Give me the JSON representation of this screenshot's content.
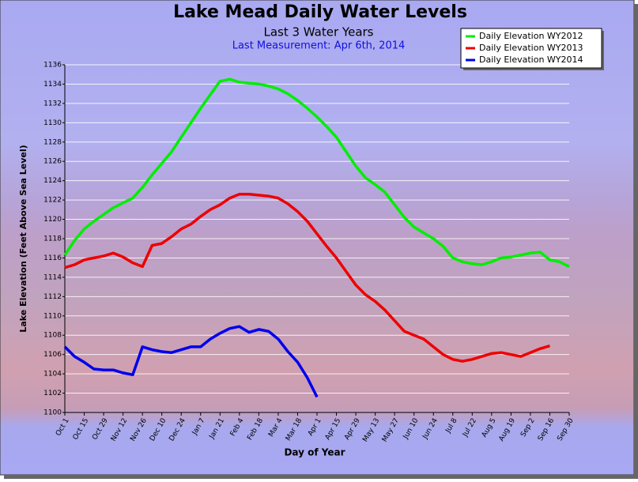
{
  "chart_data": {
    "type": "line",
    "title": "Lake Mead Daily Water Levels",
    "subtitle": "Last 3 Water Years",
    "annotation": "Last Measurement: Apr 6th, 2014",
    "x_label": "Day of Year",
    "y_label": "Lake Elevation (Feet Above Sea Level)",
    "x": [
      0,
      7,
      14,
      21,
      28,
      35,
      42,
      49,
      56,
      63,
      70,
      77,
      84,
      91,
      98,
      105,
      112,
      119,
      126,
      133,
      140,
      147,
      154,
      161,
      168,
      175,
      182,
      189,
      196,
      203,
      210,
      217,
      224,
      231,
      238,
      245,
      252,
      259,
      266,
      273,
      280,
      287,
      294,
      301,
      308,
      315,
      322,
      329,
      336,
      343,
      350,
      357,
      364
    ],
    "series": [
      {
        "name": "Daily Elevation WY2012",
        "color": "#00ee00",
        "values": [
          1116.3,
          1117.8,
          1119,
          1119.8,
          1120.5,
          1121.2,
          1121.7,
          1122.2,
          1123.3,
          1124.6,
          1125.8,
          1127,
          1128.5,
          1130,
          1131.5,
          1132.9,
          1134.3,
          1134.5,
          1134.2,
          1134.1,
          1134,
          1133.8,
          1133.5,
          1133,
          1132.3,
          1131.5,
          1130.6,
          1129.6,
          1128.5,
          1127,
          1125.5,
          1124.3,
          1123.6,
          1122.8,
          1121.5,
          1120.2,
          1119.2,
          1118.6,
          1118,
          1117.2,
          1116,
          1115.6,
          1115.4,
          1115.3,
          1115.6,
          1116,
          1116.1,
          1116.3,
          1116.5,
          1116.6,
          1115.8,
          1115.6,
          1115.1
        ]
      },
      {
        "name": "Daily Elevation WY2013",
        "color": "#ee0000",
        "values": [
          1115,
          1115.3,
          1115.8,
          1116,
          1116.2,
          1116.5,
          1116.1,
          1115.5,
          1115.1,
          1117.3,
          1117.5,
          1118.2,
          1119,
          1119.5,
          1120.3,
          1121,
          1121.5,
          1122.2,
          1122.6,
          1122.6,
          1122.5,
          1122.4,
          1122.2,
          1121.6,
          1120.8,
          1119.8,
          1118.5,
          1117.2,
          1116,
          1114.6,
          1113.2,
          1112.2,
          1111.5,
          1110.6,
          1109.5,
          1108.4,
          1108,
          1107.6,
          1106.8,
          1106,
          1105.5,
          1105.3,
          1105.5,
          1105.8,
          1106.1,
          1106.2,
          1106,
          1105.8,
          1106.2,
          1106.6,
          1106.9,
          null,
          null
        ]
      },
      {
        "name": "Daily Elevation WY2014",
        "color": "#0000ee",
        "values": [
          1106.8,
          1105.8,
          1105.2,
          1104.5,
          1104.4,
          1104.4,
          1104.1,
          1103.9,
          1106.8,
          1106.5,
          1106.3,
          1106.2,
          1106.5,
          1106.8,
          1106.8,
          1107.6,
          1108.2,
          1108.7,
          1108.9,
          1108.3,
          1108.6,
          1108.4,
          1107.6,
          1106.3,
          1105.2,
          1103.6,
          1101.6,
          null,
          null,
          null,
          null,
          null,
          null,
          null,
          null,
          null,
          null,
          null,
          null,
          null,
          null,
          null,
          null,
          null,
          null,
          null,
          null,
          null,
          null,
          null,
          null,
          null,
          null
        ]
      }
    ],
    "xlim": [
      0,
      364
    ],
    "xticks": [
      {
        "value": 0,
        "label": "Oct 1"
      },
      {
        "value": 14,
        "label": "Oct 15"
      },
      {
        "value": 28,
        "label": "Oct 29"
      },
      {
        "value": 42,
        "label": "Nov 12"
      },
      {
        "value": 56,
        "label": "Nov 26"
      },
      {
        "value": 70,
        "label": "Dec 10"
      },
      {
        "value": 84,
        "label": "Dec 24"
      },
      {
        "value": 98,
        "label": "Jan 7"
      },
      {
        "value": 112,
        "label": "Jan 21"
      },
      {
        "value": 126,
        "label": "Feb 4"
      },
      {
        "value": 140,
        "label": "Feb 18"
      },
      {
        "value": 154,
        "label": "Mar 4"
      },
      {
        "value": 168,
        "label": "Mar 18"
      },
      {
        "value": 182,
        "label": "Apr 1"
      },
      {
        "value": 196,
        "label": "Apr 15"
      },
      {
        "value": 210,
        "label": "Apr 29"
      },
      {
        "value": 224,
        "label": "May 13"
      },
      {
        "value": 238,
        "label": "May 27"
      },
      {
        "value": 252,
        "label": "Jun 10"
      },
      {
        "value": 266,
        "label": "Jun 24"
      },
      {
        "value": 280,
        "label": "Jul 8"
      },
      {
        "value": 294,
        "label": "Jul 22"
      },
      {
        "value": 308,
        "label": "Aug 5"
      },
      {
        "value": 322,
        "label": "Aug 19"
      },
      {
        "value": 336,
        "label": "Sep 2"
      },
      {
        "value": 350,
        "label": "Sep 16"
      },
      {
        "value": 364,
        "label": "Sep 30"
      }
    ],
    "ylim": [
      1100,
      1136
    ],
    "yticks": [
      1100,
      1102,
      1104,
      1106,
      1108,
      1110,
      1112,
      1114,
      1116,
      1118,
      1120,
      1122,
      1124,
      1126,
      1128,
      1130,
      1132,
      1134,
      1136
    ],
    "grid": true,
    "legend": "top-right"
  }
}
